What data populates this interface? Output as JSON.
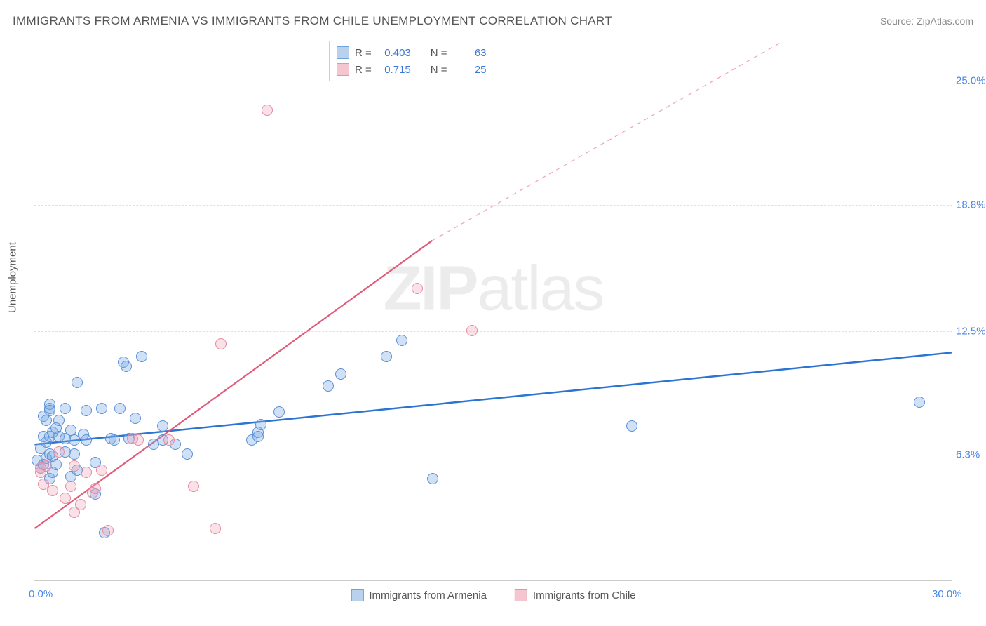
{
  "title": "IMMIGRANTS FROM ARMENIA VS IMMIGRANTS FROM CHILE UNEMPLOYMENT CORRELATION CHART",
  "source_label": "Source:",
  "source_value": "ZipAtlas.com",
  "watermark": {
    "bold": "ZIP",
    "rest": "atlas"
  },
  "chart": {
    "type": "scatter",
    "background_color": "#ffffff",
    "grid_color": "#e0e0e0",
    "axis_color": "#cccccc",
    "ylabel": "Unemployment",
    "label_color": "#555555",
    "label_fontsize": 15,
    "xlim": [
      0,
      30
    ],
    "ylim": [
      0,
      27
    ],
    "xticks": [
      {
        "v": 0.0,
        "label": "0.0%",
        "color": "#4a86e8"
      },
      {
        "v": 30.0,
        "label": "30.0%",
        "color": "#4a86e8"
      }
    ],
    "yticks": [
      {
        "v": 6.3,
        "label": "6.3%",
        "color": "#4a86e8"
      },
      {
        "v": 12.5,
        "label": "12.5%",
        "color": "#4a86e8"
      },
      {
        "v": 18.8,
        "label": "18.8%",
        "color": "#4a86e8"
      },
      {
        "v": 25.0,
        "label": "25.0%",
        "color": "#4a86e8"
      }
    ],
    "marker_radius": 8,
    "marker_stroke_width": 1.2,
    "series": [
      {
        "name": "Immigrants from Armenia",
        "fill": "rgba(120,170,230,0.35)",
        "stroke": "#5b8fd6",
        "swatch_fill": "#b8d1ec",
        "swatch_stroke": "#6fa3e0",
        "R": "0.403",
        "N": "63",
        "trend": {
          "x1": 0,
          "y1": 6.8,
          "x2": 30,
          "y2": 11.4,
          "color": "#2b74d4",
          "width": 2.5,
          "dash": null
        },
        "points": [
          [
            0.1,
            6.0
          ],
          [
            0.2,
            5.6
          ],
          [
            0.2,
            6.6
          ],
          [
            0.3,
            5.8
          ],
          [
            0.3,
            7.2
          ],
          [
            0.3,
            8.2
          ],
          [
            0.4,
            6.1
          ],
          [
            0.4,
            6.9
          ],
          [
            0.4,
            8.0
          ],
          [
            0.5,
            5.1
          ],
          [
            0.5,
            6.3
          ],
          [
            0.5,
            7.2
          ],
          [
            0.5,
            8.6
          ],
          [
            0.5,
            8.8
          ],
          [
            0.5,
            8.5
          ],
          [
            0.6,
            6.2
          ],
          [
            0.6,
            7.4
          ],
          [
            0.6,
            5.4
          ],
          [
            0.7,
            5.8
          ],
          [
            0.7,
            7.6
          ],
          [
            0.8,
            7.2
          ],
          [
            0.8,
            8.0
          ],
          [
            1.0,
            6.4
          ],
          [
            1.0,
            7.1
          ],
          [
            1.0,
            8.6
          ],
          [
            1.2,
            5.2
          ],
          [
            1.2,
            7.5
          ],
          [
            1.3,
            6.3
          ],
          [
            1.3,
            7.0
          ],
          [
            1.4,
            5.5
          ],
          [
            1.4,
            9.9
          ],
          [
            1.6,
            7.3
          ],
          [
            1.7,
            7.0
          ],
          [
            1.7,
            8.5
          ],
          [
            2.0,
            4.3
          ],
          [
            2.0,
            5.9
          ],
          [
            2.2,
            8.6
          ],
          [
            2.3,
            2.4
          ],
          [
            2.5,
            7.1
          ],
          [
            2.6,
            7.0
          ],
          [
            2.8,
            8.6
          ],
          [
            2.9,
            10.9
          ],
          [
            3.0,
            10.7
          ],
          [
            3.1,
            7.1
          ],
          [
            3.3,
            8.1
          ],
          [
            3.5,
            11.2
          ],
          [
            3.9,
            6.8
          ],
          [
            4.2,
            7.0
          ],
          [
            4.2,
            7.7
          ],
          [
            4.6,
            6.8
          ],
          [
            5.0,
            6.3
          ],
          [
            7.1,
            7.0
          ],
          [
            7.3,
            7.4
          ],
          [
            7.3,
            7.2
          ],
          [
            7.4,
            7.8
          ],
          [
            8.0,
            8.4
          ],
          [
            9.6,
            9.7
          ],
          [
            10.0,
            10.3
          ],
          [
            11.5,
            11.2
          ],
          [
            12.0,
            12.0
          ],
          [
            13.0,
            5.1
          ],
          [
            19.5,
            7.7
          ],
          [
            28.9,
            8.9
          ]
        ]
      },
      {
        "name": "Immigrants from Chile",
        "fill": "rgba(240,160,180,0.32)",
        "stroke": "#e38ca0",
        "swatch_fill": "#f3c6d0",
        "swatch_stroke": "#e693a8",
        "R": "0.715",
        "N": "25",
        "trend": {
          "x1": 0,
          "y1": 2.6,
          "x2": 13,
          "y2": 17.0,
          "color": "#e05a7a",
          "width": 2.2,
          "dash": null
        },
        "trend_ext": {
          "x1": 13,
          "y1": 17.0,
          "x2": 24.5,
          "y2": 27.0,
          "color": "#f0a8b8",
          "width": 1.3,
          "dash": "6 6"
        },
        "points": [
          [
            0.2,
            5.4
          ],
          [
            0.2,
            5.6
          ],
          [
            0.3,
            4.8
          ],
          [
            0.4,
            5.7
          ],
          [
            0.6,
            4.5
          ],
          [
            0.8,
            6.4
          ],
          [
            1.0,
            4.1
          ],
          [
            1.2,
            4.7
          ],
          [
            1.3,
            3.4
          ],
          [
            1.3,
            5.7
          ],
          [
            1.5,
            3.8
          ],
          [
            1.7,
            5.4
          ],
          [
            1.9,
            4.4
          ],
          [
            2.0,
            4.6
          ],
          [
            2.2,
            5.5
          ],
          [
            2.4,
            2.5
          ],
          [
            3.2,
            7.1
          ],
          [
            3.4,
            7.0
          ],
          [
            4.4,
            7.0
          ],
          [
            5.2,
            4.7
          ],
          [
            5.9,
            2.6
          ],
          [
            6.1,
            11.8
          ],
          [
            7.6,
            23.5
          ],
          [
            12.5,
            14.6
          ],
          [
            14.3,
            12.5
          ]
        ]
      }
    ],
    "stats_box": {
      "R_label": "R =",
      "N_label": "N =",
      "value_color": "#3b78d8",
      "text_color": "#555555"
    },
    "legend_position": "bottom"
  }
}
